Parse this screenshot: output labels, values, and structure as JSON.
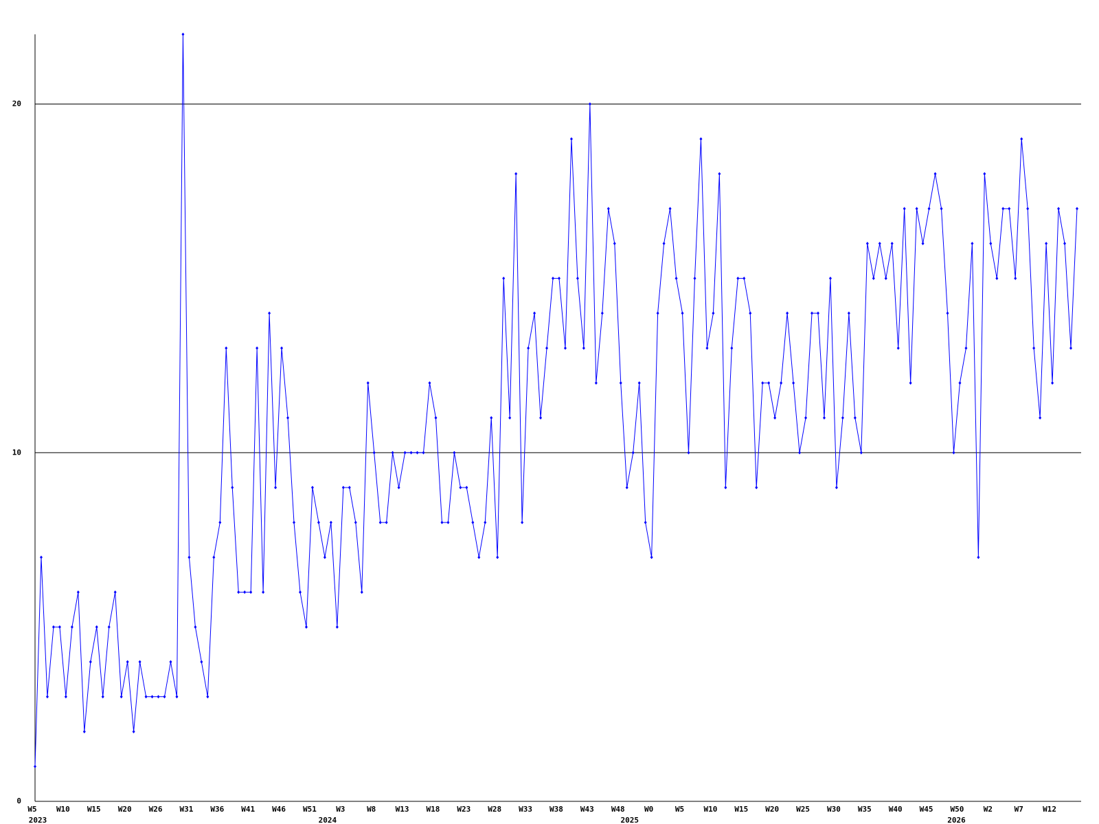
{
  "chart_data": {
    "type": "line",
    "categories": [
      "W5",
      null,
      null,
      null,
      null,
      "W10",
      null,
      null,
      null,
      null,
      "W15",
      null,
      null,
      null,
      null,
      "W20",
      null,
      null,
      null,
      null,
      "W26",
      null,
      null,
      null,
      null,
      "W31",
      null,
      null,
      null,
      null,
      "W36",
      null,
      null,
      null,
      null,
      "W41",
      null,
      null,
      null,
      null,
      "W46",
      null,
      null,
      null,
      null,
      "W51",
      null,
      null,
      null,
      null,
      "W3",
      null,
      null,
      null,
      null,
      "W8",
      null,
      null,
      null,
      null,
      "W13",
      null,
      null,
      null,
      null,
      "W18",
      null,
      null,
      null,
      null,
      "W23",
      null,
      null,
      null,
      null,
      "W28",
      null,
      null,
      null,
      null,
      "W33",
      null,
      null,
      null,
      null,
      "W38",
      null,
      null,
      null,
      null,
      "W43",
      null,
      null,
      null,
      null,
      "W48",
      null,
      null,
      null,
      null,
      "W0",
      null,
      null,
      null,
      null,
      "W5",
      null,
      null,
      null,
      null,
      "W10",
      null,
      null,
      null,
      null,
      "W15",
      null,
      null,
      null,
      null,
      "W20",
      null,
      null,
      null,
      null,
      "W25",
      null,
      null,
      null,
      null,
      "W30",
      null,
      null,
      null,
      null,
      "W35",
      null,
      null,
      null,
      null,
      "W40",
      null,
      null,
      null,
      null,
      "W45",
      null,
      null,
      null,
      null,
      "W50",
      null,
      null,
      null,
      null,
      "W2",
      null,
      null,
      null,
      null,
      "W7",
      null,
      null,
      null,
      null,
      "W12",
      null,
      null,
      null,
      null
    ],
    "years": [
      "2023",
      null,
      null,
      null,
      null,
      null,
      null,
      null,
      null,
      null,
      null,
      null,
      null,
      null,
      null,
      null,
      null,
      null,
      null,
      null,
      null,
      null,
      null,
      null,
      null,
      null,
      null,
      null,
      null,
      null,
      null,
      null,
      null,
      null,
      null,
      null,
      null,
      null,
      null,
      null,
      null,
      null,
      null,
      null,
      null,
      null,
      null,
      "2024",
      null,
      null,
      null,
      null,
      null,
      null,
      null,
      null,
      null,
      null,
      null,
      null,
      null,
      null,
      null,
      null,
      null,
      null,
      null,
      null,
      null,
      null,
      null,
      null,
      null,
      null,
      null,
      null,
      null,
      null,
      null,
      null,
      null,
      null,
      null,
      null,
      null,
      null,
      null,
      null,
      null,
      null,
      null,
      null,
      null,
      null,
      null,
      null,
      "2025",
      null,
      null,
      null,
      null,
      null,
      null,
      null,
      null,
      null,
      null,
      null,
      null,
      null,
      null,
      null,
      null,
      null,
      null,
      null,
      null,
      null,
      null,
      null,
      null,
      null,
      null,
      null,
      null,
      null,
      null,
      null,
      null,
      null,
      null,
      null,
      null,
      null,
      null,
      null,
      null,
      null,
      null,
      null,
      null,
      null,
      null,
      null,
      null,
      null,
      null,
      null,
      null,
      "2026",
      null,
      null,
      null,
      null,
      null,
      null,
      null,
      null,
      null,
      null,
      null,
      null,
      null,
      null,
      null,
      null
    ],
    "values": [
      1,
      7,
      3,
      5,
      5,
      3,
      5,
      6,
      2,
      4,
      5,
      3,
      5,
      6,
      3,
      4,
      2,
      4,
      3,
      3,
      3,
      3,
      4,
      3,
      22,
      7,
      5,
      4,
      3,
      7,
      8,
      13,
      9,
      6,
      6,
      6,
      13,
      6,
      14,
      9,
      13,
      11,
      8,
      6,
      5,
      9,
      8,
      7,
      8,
      5,
      9,
      9,
      8,
      6,
      12,
      10,
      8,
      8,
      10,
      9,
      10,
      10,
      10,
      10,
      12,
      11,
      8,
      8,
      10,
      9,
      9,
      8,
      7,
      8,
      11,
      7,
      15,
      11,
      18,
      8,
      13,
      14,
      11,
      13,
      15,
      15,
      13,
      19,
      15,
      13,
      20,
      12,
      14,
      17,
      16,
      12,
      9,
      10,
      12,
      8,
      7,
      14,
      16,
      17,
      15,
      14,
      10,
      15,
      19,
      13,
      14,
      18,
      9,
      13,
      15,
      15,
      14,
      9,
      12,
      12,
      11,
      12,
      14,
      12,
      10,
      11,
      14,
      14,
      11,
      15,
      9,
      11,
      14,
      11,
      10,
      16,
      15,
      16,
      15,
      16,
      13,
      17,
      12,
      17,
      16,
      17,
      18,
      17,
      14,
      10,
      12,
      13,
      16,
      7,
      18,
      16,
      15,
      17,
      17,
      15,
      19,
      17,
      13,
      11,
      16,
      12,
      17,
      16,
      13,
      17
    ],
    "color": "#0000ff",
    "ylim": [
      0,
      22
    ],
    "yticks": [
      0,
      10,
      20
    ],
    "grid": true
  }
}
